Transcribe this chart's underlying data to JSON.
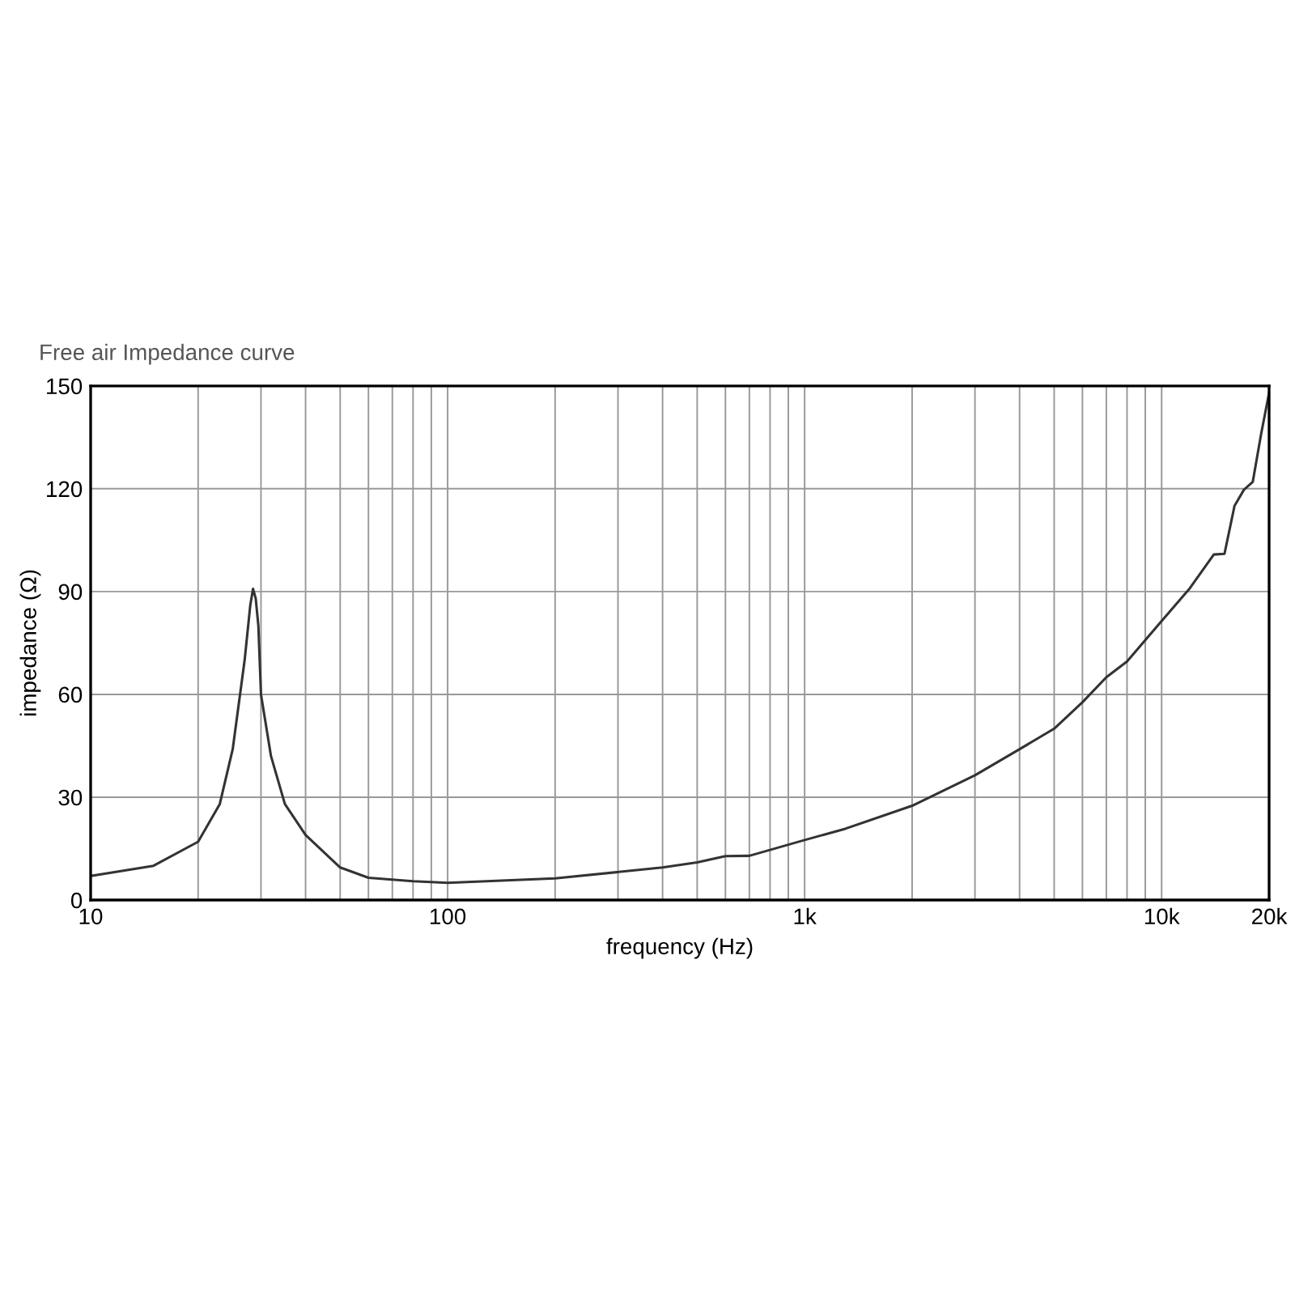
{
  "chart_data": {
    "type": "line",
    "title": "Free air Impedance curve",
    "xlabel": "frequency (Hz)",
    "ylabel": "impedance (Ω)",
    "log": "x",
    "grid": true,
    "marker": "none",
    "line_style": "solid",
    "xlim": [
      10,
      20000
    ],
    "ylim": [
      0,
      150
    ],
    "yticks": [
      0,
      30,
      60,
      90,
      120,
      150
    ],
    "xticks": [
      10,
      {
        "value": 20,
        "label": null
      },
      {
        "value": 30,
        "label": null
      },
      {
        "value": 40,
        "label": null
      },
      {
        "value": 50,
        "label": null
      },
      {
        "value": 60,
        "label": null
      },
      {
        "value": 70,
        "label": null
      },
      {
        "value": 80,
        "label": null
      },
      {
        "value": 90,
        "label": null
      },
      100,
      {
        "value": 200,
        "label": null
      },
      {
        "value": 300,
        "label": null
      },
      {
        "value": 400,
        "label": null
      },
      {
        "value": 500,
        "label": null
      },
      {
        "value": 600,
        "label": null
      },
      {
        "value": 700,
        "label": null
      },
      {
        "value": 800,
        "label": null
      },
      {
        "value": 900,
        "label": null
      },
      {
        "value": 1000,
        "label": "1k"
      },
      {
        "value": 2000,
        "label": null
      },
      {
        "value": 3000,
        "label": null
      },
      {
        "value": 4000,
        "label": null
      },
      {
        "value": 5000,
        "label": null
      },
      {
        "value": 6000,
        "label": null
      },
      {
        "value": 7000,
        "label": null
      },
      {
        "value": 8000,
        "label": null
      },
      {
        "value": 9000,
        "label": null
      },
      {
        "value": 10000,
        "label": "10k"
      },
      {
        "value": 20000,
        "label": "20k"
      }
    ],
    "series": [
      {
        "color": "#333333",
        "x": [
          10,
          15,
          20,
          23,
          25,
          27,
          28,
          28.5,
          29,
          29.5,
          30,
          32,
          35,
          40,
          50,
          60,
          80,
          100,
          200,
          400,
          500,
          600,
          700,
          1000,
          1300,
          2000,
          3000,
          4000,
          5000,
          6000,
          7000,
          8000,
          10000,
          12000,
          14000,
          15000,
          16000,
          17000,
          18000,
          19000,
          20000
        ],
        "values": [
          7,
          10,
          17,
          28,
          44,
          70,
          86,
          90.8,
          88,
          80,
          60,
          42,
          28,
          19,
          9.5,
          6.5,
          5.5,
          5,
          6.3,
          9.5,
          11,
          12.8,
          12.9,
          17.5,
          20.8,
          27.5,
          36.4,
          44,
          50,
          57.7,
          65,
          69.6,
          81.4,
          91,
          100.8,
          101,
          115,
          119.7,
          122,
          136,
          148
        ]
      }
    ]
  }
}
